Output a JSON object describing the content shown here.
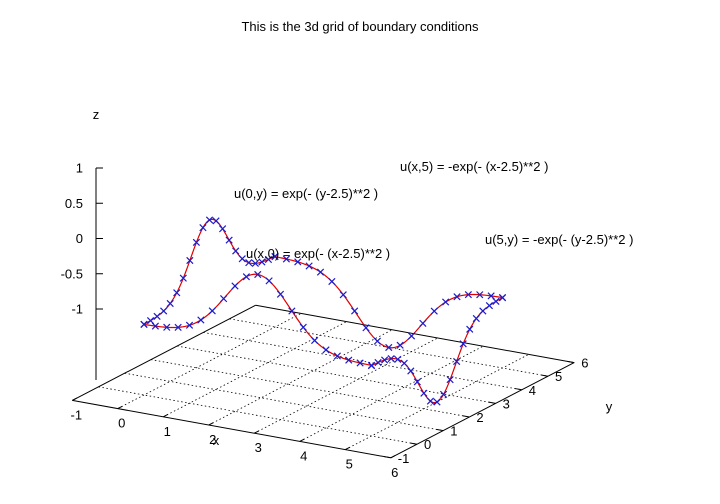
{
  "chart_data": {
    "type": "line",
    "title": "This is the 3d grid of boundary conditions",
    "xlabel": "x",
    "ylabel": "y",
    "zlabel": "z",
    "xlim": [
      -1,
      6
    ],
    "ylim": [
      -1,
      6
    ],
    "zlim": [
      -1,
      1
    ],
    "x_ticks": [
      "-1",
      "0",
      "1",
      "2",
      "3",
      "4",
      "5",
      "6"
    ],
    "y_ticks": [
      "-1",
      "0",
      "1",
      "2",
      "3",
      "4",
      "5",
      "6"
    ],
    "z_ticks": [
      "1",
      "0.5",
      "0",
      "-0.5",
      "-1"
    ],
    "grid": true,
    "colors": {
      "line": "#e00000",
      "points": "#1c1ccc"
    },
    "marker": "x",
    "series": [
      {
        "label": "u(x,0) = exp(- (x-2.5)**2 )",
        "fixed_axis": "y",
        "fixed_value": 0,
        "sign": 1,
        "center": 2.5,
        "from": 0,
        "to": 5,
        "n_points": 20
      },
      {
        "label": "u(x,5) = -exp(- (x-2.5)**2 )",
        "fixed_axis": "y",
        "fixed_value": 5,
        "sign": -1,
        "center": 2.5,
        "from": 0,
        "to": 5,
        "n_points": 20
      },
      {
        "label": "u(0,y) = exp(- (y-2.5)**2 )",
        "fixed_axis": "x",
        "fixed_value": 0,
        "sign": 1,
        "center": 2.5,
        "from": 0,
        "to": 5,
        "n_points": 20
      },
      {
        "label": "u(5,y) = -exp(- (y-2.5)**2 )",
        "fixed_axis": "x",
        "fixed_value": 5,
        "sign": -1,
        "center": 2.5,
        "from": 0,
        "to": 5,
        "n_points": 20
      }
    ]
  }
}
